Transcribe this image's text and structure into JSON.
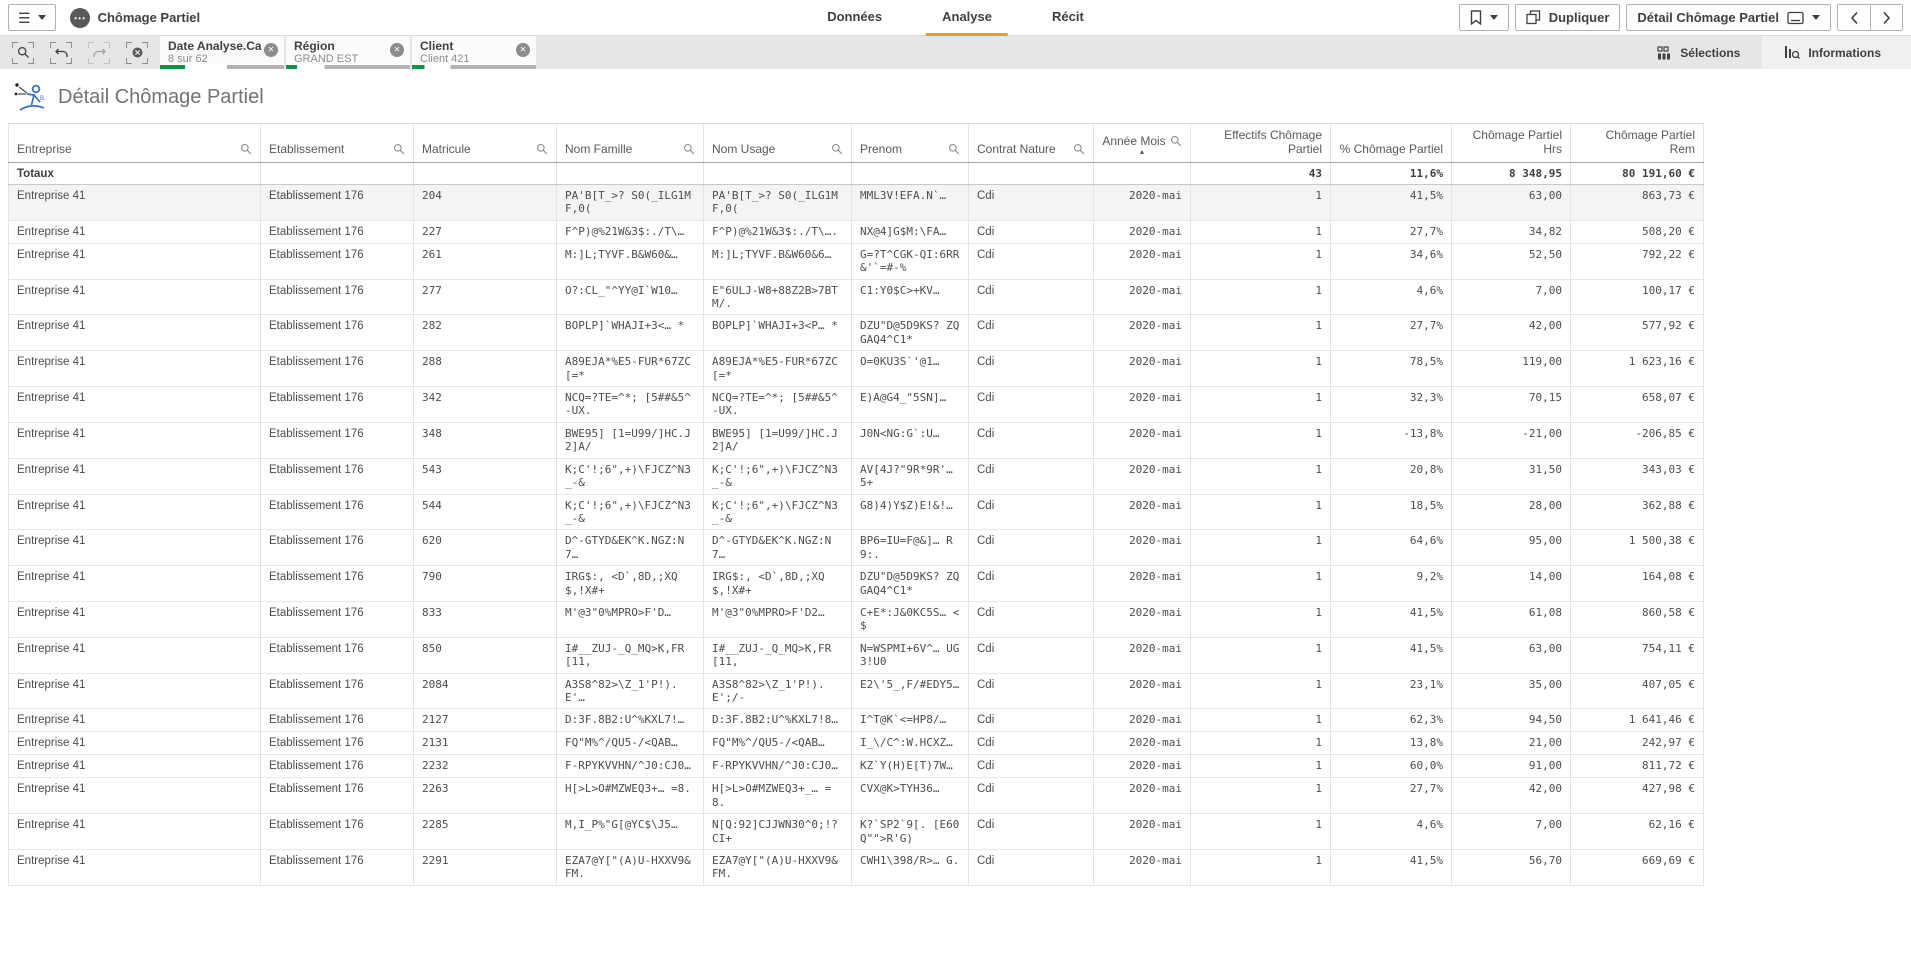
{
  "colors": {
    "accent_green": "#009845",
    "tab_active_orange": "#f8981d",
    "excluded_gray": "#b3b3b3"
  },
  "icons": {
    "menu": "☰",
    "app_ellipsis": "⋯",
    "close": "✕",
    "chevron_left": "‹",
    "chevron_right": "›",
    "sort_asc": "▲",
    "undo": "↶",
    "redo": "↷"
  },
  "topbar": {
    "app_title": "Chômage Partiel",
    "tabs": [
      {
        "label": "Données"
      },
      {
        "label": "Analyse"
      },
      {
        "label": "Récit"
      }
    ],
    "active_tab": "Analyse",
    "duplicate_label": "Dupliquer",
    "sheet_selector_label": "Détail Chômage Partiel"
  },
  "selections_bar": {
    "chips": [
      {
        "title": "Date Analyse.Ca...",
        "value": "8 sur 62",
        "bar": {
          "green_pct": 20,
          "gray_from_pct": 54
        }
      },
      {
        "title": "Région",
        "value": "GRAND EST",
        "bar": {
          "green_pct": 9,
          "gray_from_pct": 31
        }
      },
      {
        "title": "Client",
        "value": "Client 421",
        "bar": {
          "green_pct": 10,
          "gray_from_pct": 31
        }
      }
    ],
    "right_items": [
      {
        "label": "Sélections"
      },
      {
        "label": "Informations"
      }
    ]
  },
  "sheet": {
    "title": "Détail Chômage Partiel"
  },
  "table": {
    "columns": [
      {
        "label": "Entreprise",
        "type": "dim"
      },
      {
        "label": "Etablissement",
        "type": "dim"
      },
      {
        "label": "Matricule",
        "type": "dim"
      },
      {
        "label": "Nom Famille",
        "type": "dim"
      },
      {
        "label": "Nom Usage",
        "type": "dim"
      },
      {
        "label": "Prenom",
        "type": "dim"
      },
      {
        "label": "Contrat Nature",
        "type": "dim"
      },
      {
        "label": "Année Mois",
        "type": "dim",
        "sorted": "asc"
      },
      {
        "label": "Effectifs Chômage Partiel",
        "type": "measure"
      },
      {
        "label": "% Chômage Partiel",
        "type": "measure"
      },
      {
        "label": "Chômage Partiel Hrs",
        "type": "measure"
      },
      {
        "label": "Chômage Partiel Rem",
        "type": "measure"
      }
    ],
    "totals": {
      "label": "Totaux",
      "effectifs": "43",
      "pct": "11,6%",
      "hrs": "8 348,95",
      "rem": "80 191,60 €"
    },
    "rows": [
      {
        "hl": true,
        "cells": [
          "Entreprise 41",
          "Etablissement 176",
          "204",
          "PA'B[T_>? S0(_ILG1MF,0(",
          "PA'B[T_>? S0(_ILG1MF,0(",
          "MML3V!EFA.N`…",
          "Cdi",
          "2020-mai",
          "1",
          "41,5%",
          "63,00",
          "863,73 €"
        ]
      },
      {
        "cells": [
          "Entreprise 41",
          "Etablissement 176",
          "227",
          "F^P)@%21W&3$:./T\\…",
          "F^P)@%21W&3$:./T\\….",
          "NX@4]G$M:\\FA…",
          "Cdi",
          "2020-mai",
          "1",
          "27,7%",
          "34,82",
          "508,20 €"
        ]
      },
      {
        "cells": [
          "Entreprise 41",
          "Etablissement 176",
          "261",
          "M:]L;TYVF.B&W60&…",
          "M:]L;TYVF.B&W60&6…",
          "G=?T^CGK-QI:6RR&'`=#-%",
          "Cdi",
          "2020-mai",
          "1",
          "34,6%",
          "52,50",
          "792,22 €"
        ]
      },
      {
        "cells": [
          "Entreprise 41",
          "Etablissement 176",
          "277",
          "O?:CL_\"^YY@I`W10…",
          "E\"6ULJ-W8+88Z2B>7BTM/.",
          "C1:Y0$C>+KV…",
          "Cdi",
          "2020-mai",
          "1",
          "4,6%",
          "7,00",
          "100,17 €"
        ]
      },
      {
        "cells": [
          "Entreprise 41",
          "Etablissement 176",
          "282",
          "BOPLP]`WHAJI+3<… *",
          "BOPLP]`WHAJI+3<P… *",
          "DZU\"D@5D9KS? ZQGAQ4^C1*",
          "Cdi",
          "2020-mai",
          "1",
          "27,7%",
          "42,00",
          "577,92 €"
        ]
      },
      {
        "cells": [
          "Entreprise 41",
          "Etablissement 176",
          "288",
          "A89EJA*%E5-FUR*67ZC[=*",
          "A89EJA*%E5-FUR*67ZC[=*",
          "O=0KU3S`'@1…",
          "Cdi",
          "2020-mai",
          "1",
          "78,5%",
          "119,00",
          "1 623,16 €"
        ]
      },
      {
        "cells": [
          "Entreprise 41",
          "Etablissement 176",
          "342",
          "NCQ=?TE=^*; [5##&5^-UX.",
          "NCQ=?TE=^*; [5##&5^-UX.",
          "E)A@G4_\"5SN]…",
          "Cdi",
          "2020-mai",
          "1",
          "32,3%",
          "70,15",
          "658,07 €"
        ]
      },
      {
        "cells": [
          "Entreprise 41",
          "Etablissement 176",
          "348",
          "BWE95] [1=U99/]HC.J2]A/",
          "BWE95] [1=U99/]HC.J2]A/",
          "J0N<NG:G`:U…",
          "Cdi",
          "2020-mai",
          "1",
          "-13,8%",
          "-21,00",
          "-206,85 €"
        ]
      },
      {
        "cells": [
          "Entreprise 41",
          "Etablissement 176",
          "543",
          "K;C'!;6\",+)\\FJCZ^N3_-&",
          "K;C'!;6\",+)\\FJCZ^N3_-&",
          "AV[4J?\"9R*9R'… 5+",
          "Cdi",
          "2020-mai",
          "1",
          "20,8%",
          "31,50",
          "343,03 €"
        ]
      },
      {
        "cells": [
          "Entreprise 41",
          "Etablissement 176",
          "544",
          "K;C'!;6\",+)\\FJCZ^N3_-&",
          "K;C'!;6\",+)\\FJCZ^N3_-&",
          "G8)4)Y$Z)E!&!…",
          "Cdi",
          "2020-mai",
          "1",
          "18,5%",
          "28,00",
          "362,88 €"
        ]
      },
      {
        "cells": [
          "Entreprise 41",
          "Etablissement 176",
          "620",
          "D^-GTYD&EK^K.NGZ:N7…",
          "D^-GTYD&EK^K.NGZ:N7…",
          "BP6=IU=F@&]… R9:.",
          "Cdi",
          "2020-mai",
          "1",
          "64,6%",
          "95,00",
          "1 500,38 €"
        ]
      },
      {
        "cells": [
          "Entreprise 41",
          "Etablissement 176",
          "790",
          "IRG$:, <D`,8D,;XQ$,!X#+",
          "IRG$:, <D`,8D,;XQ$,!X#+",
          "DZU\"D@5D9KS? ZQGAQ4^C1*",
          "Cdi",
          "2020-mai",
          "1",
          "9,2%",
          "14,00",
          "164,08 €"
        ]
      },
      {
        "cells": [
          "Entreprise 41",
          "Etablissement 176",
          "833",
          "M'@3\"0%MPRO>F'D…",
          "M'@3\"0%MPRO>F'D2…",
          "C+E*:J&0KC5S… <$",
          "Cdi",
          "2020-mai",
          "1",
          "41,5%",
          "61,08",
          "860,58 €"
        ]
      },
      {
        "cells": [
          "Entreprise 41",
          "Etablissement 176",
          "850",
          "I#__ZUJ-_Q_MQ>K,FR[11,",
          "I#__ZUJ-_Q_MQ>K,FR[11,",
          "N=WSPMI+6V^… UG3!U0",
          "Cdi",
          "2020-mai",
          "1",
          "41,5%",
          "63,00",
          "754,11 €"
        ]
      },
      {
        "cells": [
          "Entreprise 41",
          "Etablissement 176",
          "2084",
          "A3S8^82>\\Z_1'P!).E'…",
          "A3S8^82>\\Z_1'P!).E';/-",
          "E2\\'5_,F/#EDY5…",
          "Cdi",
          "2020-mai",
          "1",
          "23,1%",
          "35,00",
          "407,05 €"
        ]
      },
      {
        "cells": [
          "Entreprise 41",
          "Etablissement 176",
          "2127",
          "D:3F.8B2:U^%KXL7!…",
          "D:3F.8B2:U^%KXL7!8…",
          "I^T@K`<=HP8/…",
          "Cdi",
          "2020-mai",
          "1",
          "62,3%",
          "94,50",
          "1 641,46 €"
        ]
      },
      {
        "cells": [
          "Entreprise 41",
          "Etablissement 176",
          "2131",
          "FQ\"M%^/QU5-/<QAB…",
          "FQ\"M%^/QU5-/<QAB…",
          "I_\\/C^:W.HCXZ…",
          "Cdi",
          "2020-mai",
          "1",
          "13,8%",
          "21,00",
          "242,97 €"
        ]
      },
      {
        "cells": [
          "Entreprise 41",
          "Etablissement 176",
          "2232",
          "F-RPYKVVHN/^J0:CJ0…",
          "F-RPYKVVHN/^J0:CJ0…",
          "KZ`Y(H)E[T)7W…",
          "Cdi",
          "2020-mai",
          "1",
          "60,0%",
          "91,00",
          "811,72 €"
        ]
      },
      {
        "cells": [
          "Entreprise 41",
          "Etablissement 176",
          "2263",
          "H[>L>O#MZWEQ3+… =8.",
          "H[>L>O#MZWEQ3+_… =8.",
          "CVX@K>TYH36…",
          "Cdi",
          "2020-mai",
          "1",
          "27,7%",
          "42,00",
          "427,98 €"
        ]
      },
      {
        "cells": [
          "Entreprise 41",
          "Etablissement 176",
          "2285",
          "M,I_P%\"G[@YC$\\J5…",
          "N[Q:92]CJJWN30^0;!? CI+",
          "K?`SP2`9[. [E60Q\"\">R'G)",
          "Cdi",
          "2020-mai",
          "1",
          "4,6%",
          "7,00",
          "62,16 €"
        ]
      },
      {
        "cells": [
          "Entreprise 41",
          "Etablissement 176",
          "2291",
          "EZA7@Y[\"(A)U-HXXV9&FM.",
          "EZA7@Y[\"(A)U-HXXV9&FM.",
          "CWH1\\398/R>… G.",
          "Cdi",
          "2020-mai",
          "1",
          "41,5%",
          "56,70",
          "669,69 €"
        ]
      }
    ]
  }
}
